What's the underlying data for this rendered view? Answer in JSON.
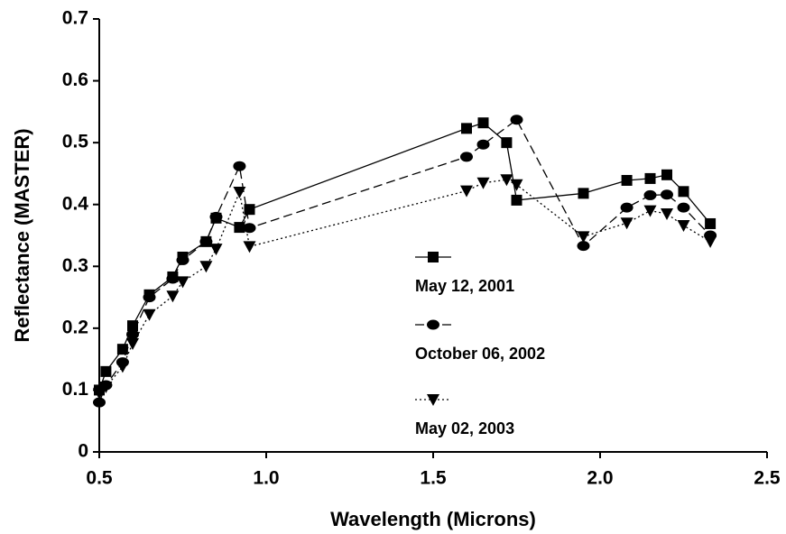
{
  "chart_data": {
    "type": "line",
    "xlabel": "Wavelength (Microns)",
    "ylabel": "Reflectance (MASTER)",
    "xlim": [
      0.5,
      2.5
    ],
    "xticks": [
      0.5,
      {
        "value": 1,
        "label": "1.0"
      },
      1.5,
      {
        "value": 2,
        "label": "2.0"
      },
      2.5
    ],
    "ylim": [
      0,
      0.7
    ],
    "yticks": [
      0,
      0.1,
      0.2,
      0.3,
      0.4,
      0.5,
      0.6,
      0.7
    ],
    "legend": "center-right",
    "series": [
      {
        "name": "May 12, 2001",
        "color": "#000000",
        "marker": "square",
        "linestyle": "solid",
        "x": [
          0.5,
          0.52,
          0.57,
          0.6,
          0.65,
          0.72,
          0.75,
          0.82,
          0.85,
          0.92,
          0.95,
          1.6,
          1.65,
          1.72,
          1.75,
          1.95,
          2.08,
          2.15,
          2.2,
          2.25,
          2.33
        ],
        "values": [
          0.1,
          0.13,
          0.166,
          0.204,
          0.254,
          0.283,
          0.315,
          0.34,
          0.378,
          0.363,
          0.392,
          0.523,
          0.532,
          0.5,
          0.407,
          0.418,
          0.439,
          0.442,
          0.448,
          0.421,
          0.369
        ]
      },
      {
        "name": "October 06, 2002",
        "color": "#000000",
        "marker": "circle",
        "linestyle": "dashed",
        "x": [
          0.5,
          0.52,
          0.57,
          0.6,
          0.65,
          0.72,
          0.75,
          0.82,
          0.85,
          0.92,
          0.95,
          1.6,
          1.65,
          1.75,
          1.95,
          2.08,
          2.15,
          2.2,
          2.25,
          2.33
        ],
        "values": [
          0.08,
          0.108,
          0.145,
          0.19,
          0.25,
          0.28,
          0.31,
          0.34,
          0.38,
          0.462,
          0.362,
          0.477,
          0.497,
          0.537,
          0.333,
          0.395,
          0.415,
          0.416,
          0.395,
          0.35
        ]
      },
      {
        "name": "May 02, 2003",
        "color": "#000000",
        "marker": "triangle-down",
        "linestyle": "dotted",
        "x": [
          0.5,
          0.52,
          0.57,
          0.6,
          0.65,
          0.72,
          0.75,
          0.82,
          0.85,
          0.92,
          0.95,
          1.6,
          1.65,
          1.72,
          1.75,
          1.95,
          2.08,
          2.15,
          2.2,
          2.25,
          2.33
        ],
        "values": [
          0.095,
          0.105,
          0.138,
          0.175,
          0.222,
          0.252,
          0.275,
          0.3,
          0.328,
          0.42,
          0.332,
          0.422,
          0.435,
          0.44,
          0.432,
          0.348,
          0.37,
          0.39,
          0.385,
          0.366,
          0.34
        ]
      }
    ]
  }
}
